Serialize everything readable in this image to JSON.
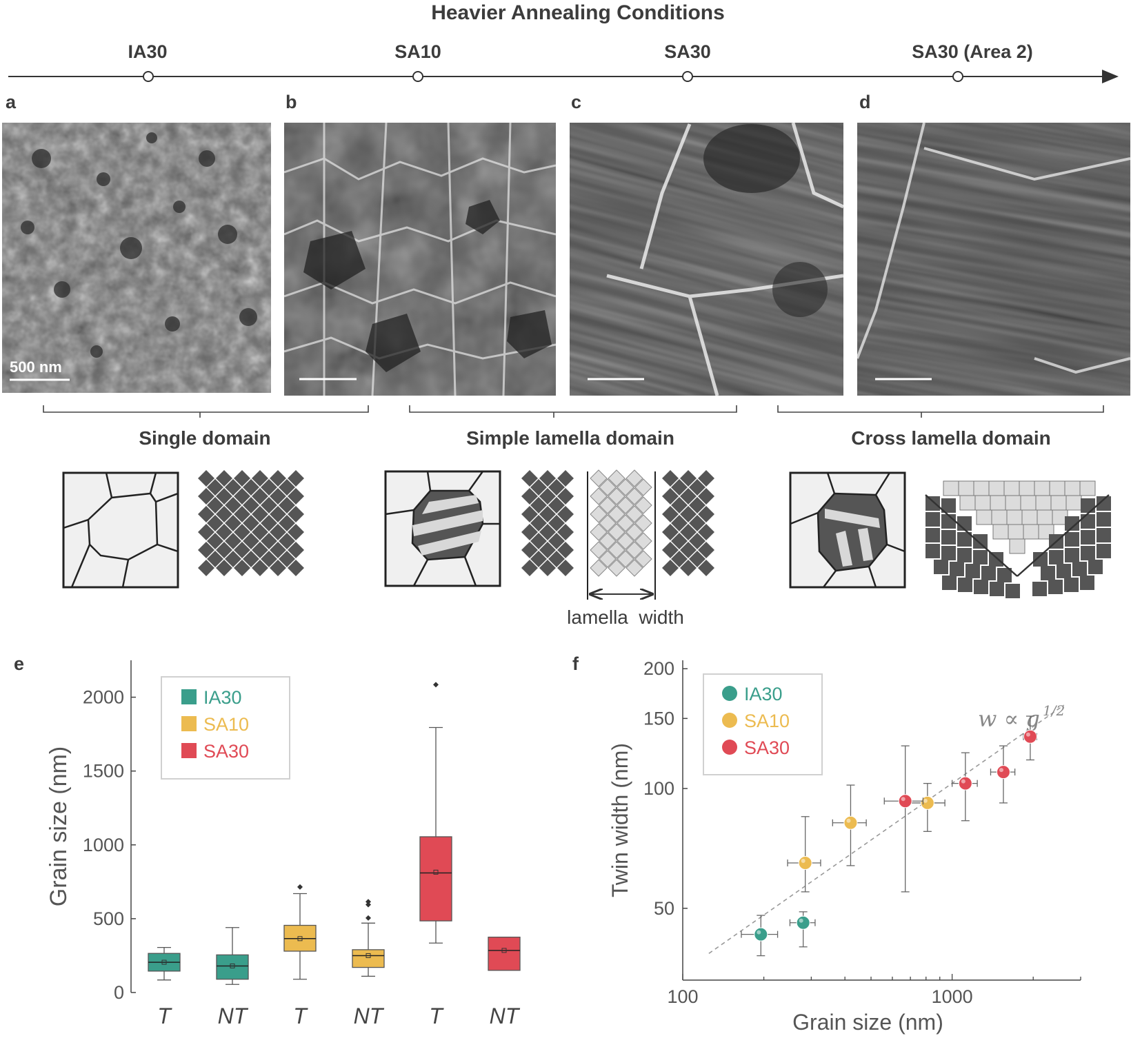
{
  "header": {
    "title": "Heavier Annealing Conditions",
    "stages": [
      "IA30",
      "SA10",
      "SA30",
      "SA30 (Area 2)"
    ]
  },
  "panels": {
    "a": "a",
    "b": "b",
    "c": "c",
    "d": "d",
    "e": "e",
    "f": "f",
    "scale_bar_label": "500 nm"
  },
  "domains": {
    "single": "Single domain",
    "simple": "Simple lamella domain",
    "cross": "Cross lamella domain",
    "lamella_width": "lamella  width"
  },
  "colors": {
    "IA30": "#3a9e8b",
    "SA10": "#ecbb50",
    "SA30": "#e04a55",
    "schematic_dark": "#555555",
    "schematic_light": "#dcdcdc"
  },
  "chart_data": [
    {
      "type": "box",
      "panel": "e",
      "ylabel": "Grain size (nm)",
      "ylim": [
        0,
        2250
      ],
      "yticks": [
        0,
        500,
        1000,
        1500,
        2000
      ],
      "legend": [
        "IA30",
        "SA10",
        "SA30"
      ],
      "legend_placement": "top-left",
      "categories": [
        "T",
        "NT",
        "T",
        "NT",
        "T",
        "NT"
      ],
      "boxes": [
        {
          "series": "IA30",
          "category": "T",
          "whisker_low": 85,
          "q1": 145,
          "median": 205,
          "q3": 265,
          "whisker_high": 305,
          "mean": 205,
          "outliers": []
        },
        {
          "series": "IA30",
          "category": "NT",
          "whisker_low": 55,
          "q1": 90,
          "median": 180,
          "q3": 255,
          "whisker_high": 440,
          "mean": 180,
          "outliers": []
        },
        {
          "series": "SA10",
          "category": "T",
          "whisker_low": 90,
          "q1": 280,
          "median": 365,
          "q3": 455,
          "whisker_high": 670,
          "mean": 365,
          "outliers": [
            715
          ]
        },
        {
          "series": "SA10",
          "category": "NT",
          "whisker_low": 110,
          "q1": 170,
          "median": 250,
          "q3": 290,
          "whisker_high": 470,
          "mean": 250,
          "outliers": [
            505,
            595,
            615
          ]
        },
        {
          "series": "SA30",
          "category": "T",
          "whisker_low": 335,
          "q1": 485,
          "median": 810,
          "q3": 1055,
          "whisker_high": 1795,
          "mean": 815,
          "outliers": [
            2085
          ]
        },
        {
          "series": "SA30",
          "category": "NT",
          "whisker_low": 150,
          "q1": 150,
          "median": 285,
          "q3": 375,
          "whisker_high": 375,
          "mean": 285,
          "outliers": []
        }
      ]
    },
    {
      "type": "scatter",
      "panel": "f",
      "xlabel": "Grain size (nm)",
      "ylabel": "Twin width (nm)",
      "x_scale": "log",
      "y_scale": "log",
      "xlim": [
        100,
        3000
      ],
      "ylim": [
        33,
        210
      ],
      "xticks": [
        100,
        1000
      ],
      "yticks": [
        50,
        100,
        150,
        200
      ],
      "legend": [
        "IA30",
        "SA10",
        "SA30"
      ],
      "legend_placement": "top-left",
      "fit_label": "w ∝ g",
      "fit_exponent": "1/2",
      "fit_line": {
        "x": [
          125,
          2600
        ],
        "y": [
          38.5,
          162
        ]
      },
      "series": [
        {
          "name": "IA30",
          "points": [
            {
              "x": 195,
              "y": 43,
              "xerr": [
                30,
                30
              ],
              "yerr": [
                5,
                5
              ]
            },
            {
              "x": 280,
              "y": 46,
              "xerr": [
                30,
                30
              ],
              "yerr": [
                6,
                3
              ]
            }
          ]
        },
        {
          "series_note": "",
          "name": "SA10",
          "points": [
            {
              "x": 285,
              "y": 65,
              "xerr": [
                40,
                40
              ],
              "yerr": [
                10,
                20
              ]
            },
            {
              "x": 420,
              "y": 82,
              "xerr": [
                60,
                60
              ],
              "yerr": [
                18,
                20
              ]
            },
            {
              "x": 810,
              "y": 92,
              "xerr": [
                130,
                130
              ],
              "yerr": [
                14,
                11
              ]
            }
          ]
        },
        {
          "name": "SA30",
          "points": [
            {
              "x": 670,
              "y": 93,
              "xerr": [
                110,
                110
              ],
              "yerr": [
                38,
                35
              ]
            },
            {
              "x": 1120,
              "y": 103,
              "xerr": [
                120,
                120
              ],
              "yerr": [
                20,
                20
              ]
            },
            {
              "x": 1550,
              "y": 110,
              "xerr": [
                160,
                160
              ],
              "yerr": [
                18,
                18
              ]
            },
            {
              "x": 1950,
              "y": 135,
              "xerr": [
                110,
                110
              ],
              "yerr": [
                17,
                17
              ]
            }
          ]
        }
      ]
    }
  ]
}
